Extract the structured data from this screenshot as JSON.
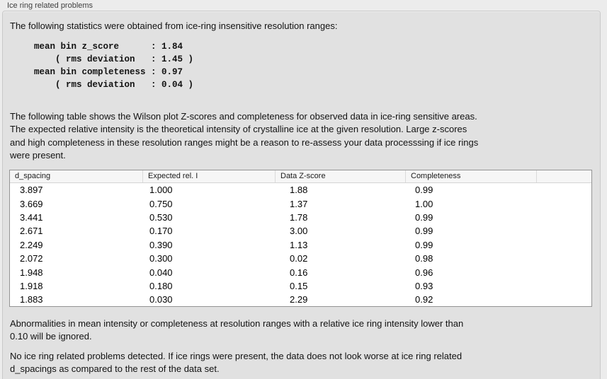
{
  "panel": {
    "title": "Ice ring related problems"
  },
  "intro_text": "The following statistics were obtained from ice-ring insensitive resolution ranges:",
  "stats_block": "mean bin z_score      : 1.84\n    ( rms deviation   : 1.45 )\nmean bin completeness : 0.97\n    ( rms deviation   : 0.04 )",
  "description_lines": [
    "The following table shows the Wilson plot Z-scores and completeness for observed data in ice-ring sensitive areas.",
    "The expected relative intensity is the theoretical intensity of crystalline ice at the given resolution. Large z-scores",
    "and high completeness in these resolution ranges might be a reason to re-assess your data processsing if ice rings",
    "were present."
  ],
  "table": {
    "columns": [
      "d_spacing",
      "Expected rel. I",
      "Data Z-score",
      "Completeness"
    ],
    "rows": [
      [
        "3.897",
        "1.000",
        "1.88",
        "0.99"
      ],
      [
        "3.669",
        "0.750",
        "1.37",
        "1.00"
      ],
      [
        "3.441",
        "0.530",
        "1.78",
        "0.99"
      ],
      [
        "2.671",
        "0.170",
        "3.00",
        "0.99"
      ],
      [
        "2.249",
        "0.390",
        "1.13",
        "0.99"
      ],
      [
        "2.072",
        "0.300",
        "0.02",
        "0.98"
      ],
      [
        "1.948",
        "0.040",
        "0.16",
        "0.96"
      ],
      [
        "1.918",
        "0.180",
        "0.15",
        "0.93"
      ],
      [
        "1.883",
        "0.030",
        "2.29",
        "0.92"
      ]
    ]
  },
  "footnote_lines": [
    "Abnormalities in mean intensity or completeness at resolution ranges with a relative ice ring intensity lower than",
    "0.10 will be ignored."
  ],
  "conclusion_lines": [
    "No ice ring related problems detected. If ice rings were present, the data does not look worse at ice ring related",
    "d_spacings as compared to the rest of the data set."
  ],
  "colors": {
    "page_background": "#ececec",
    "panel_background": "#e1e1e1",
    "table_background": "#ffffff",
    "table_header_background": "#f6f6f6",
    "table_border": "#949494",
    "text": "#121212"
  }
}
